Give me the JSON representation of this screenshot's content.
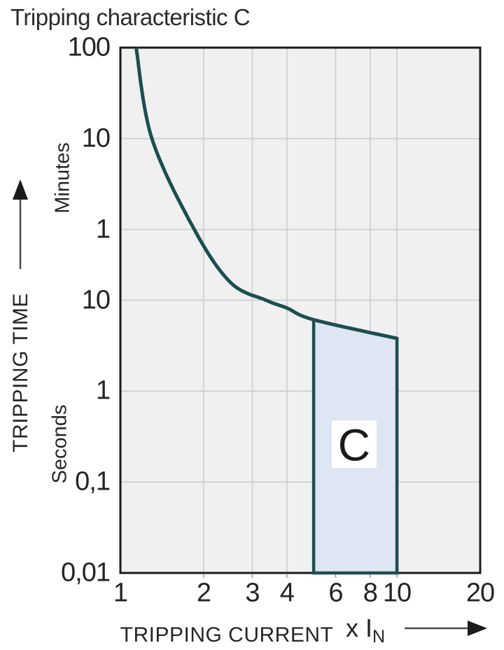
{
  "title": "Tripping characteristic C",
  "chart_data": {
    "type": "line",
    "title": "Tripping characteristic C",
    "x_axis": {
      "label": "TRIPPING CURRENT",
      "unit_prefix": "x I",
      "unit_sub": "N",
      "scale": "log",
      "min": 1,
      "max": 20,
      "ticks": [
        {
          "label": "1",
          "value": 1
        },
        {
          "label": "2",
          "value": 2
        },
        {
          "label": "3",
          "value": 3
        },
        {
          "label": "4",
          "value": 4
        },
        {
          "label": "6",
          "value": 6
        },
        {
          "label": "8",
          "value": 8
        },
        {
          "label": "10",
          "value": 10
        },
        {
          "label": "20",
          "value": 20
        }
      ],
      "gridline_values": [
        2,
        3,
        4,
        6,
        8,
        10
      ]
    },
    "y_axis": {
      "label": "TRIPPING TIME",
      "scale": "log",
      "unit": "seconds",
      "min_seconds": 0.01,
      "max_seconds": 6000,
      "sections": [
        {
          "name": "Minutes",
          "ticks": [
            {
              "label": "100",
              "seconds": 6000
            },
            {
              "label": "10",
              "seconds": 600
            },
            {
              "label": "1",
              "seconds": 60
            }
          ]
        },
        {
          "name": "Seconds",
          "ticks": [
            {
              "label": "10",
              "seconds": 10
            },
            {
              "label": "1",
              "seconds": 1
            },
            {
              "label": "0,1",
              "seconds": 0.1
            },
            {
              "label": "0,01",
              "seconds": 0.01
            }
          ]
        }
      ],
      "gridline_seconds": [
        600,
        60,
        10,
        1,
        0.1
      ]
    },
    "series": [
      {
        "name": "inverse-time tripping curve",
        "points_multiple_seconds": [
          [
            1.14,
            6000
          ],
          [
            1.3,
            600
          ],
          [
            1.85,
            60
          ],
          [
            2.5,
            15.7
          ],
          [
            3.36,
            10
          ],
          [
            4.0,
            8.2
          ],
          [
            5.0,
            6.1
          ],
          [
            10.0,
            3.8
          ]
        ]
      }
    ],
    "band": {
      "label": "C",
      "x_min_multiple": 5,
      "x_max_multiple": 10,
      "bottom_seconds": 0.01,
      "top_left_seconds": 6.1,
      "top_right_seconds": 3.8,
      "label_pos_multiple_seconds": [
        7.0,
        0.26
      ]
    },
    "colors": {
      "curve": "#1c4e50",
      "band_fill": "#dee5f3",
      "band_stroke": "#1c4e50",
      "plot_background": "#f0f0f1",
      "gridline": "#c9cdd1",
      "frame": "#1b1b1b",
      "label_box": "#ffffff",
      "text": "#262626"
    }
  }
}
